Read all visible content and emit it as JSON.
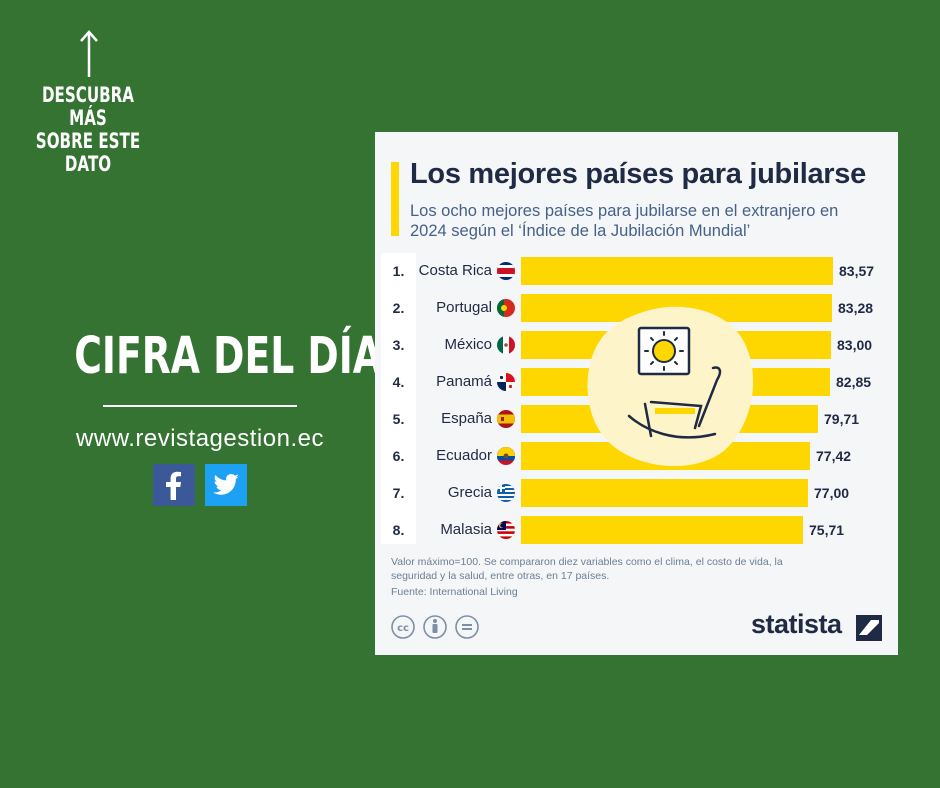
{
  "side": {
    "discover_lines": [
      "DESCUBRA MÁS",
      "SOBRE ESTE",
      "DATO"
    ],
    "headline": "CIFRA DEL DÍA",
    "website": "www.revistagestion.ec",
    "social_icons": [
      "facebook-icon",
      "twitter-icon"
    ]
  },
  "colors": {
    "background": "#357332",
    "bar": "#ffd700",
    "navy": "#1f2a44",
    "subtitle": "#45618a"
  },
  "chart_data": {
    "type": "bar",
    "orientation": "horizontal",
    "title": "Los mejores países para jubilarse",
    "subtitle": "Los ocho mejores países para jubilarse en el extranjero en 2024 según el ‘Índice de la Jubilación Mundial’",
    "ranks": [
      "1.",
      "2.",
      "3.",
      "4.",
      "5.",
      "6.",
      "7.",
      "8."
    ],
    "categories": [
      "Costa Rica",
      "Portugal",
      "México",
      "Panamá",
      "España",
      "Ecuador",
      "Grecia",
      "Malasia"
    ],
    "values": [
      83.57,
      83.28,
      83.0,
      82.85,
      79.71,
      77.42,
      77.0,
      75.71
    ],
    "value_labels": [
      "83,57",
      "83,28",
      "83,00",
      "82,85",
      "79,71",
      "77,42",
      "77,00",
      "75,71"
    ],
    "xlim": [
      0,
      100
    ],
    "note": "Valor máximo=100. Se compararon diez variables como el clima, el costo de vida, la seguridad y la salud, entre otras, en 17 países.",
    "source": "Fuente: International Living",
    "brand": "statista"
  }
}
